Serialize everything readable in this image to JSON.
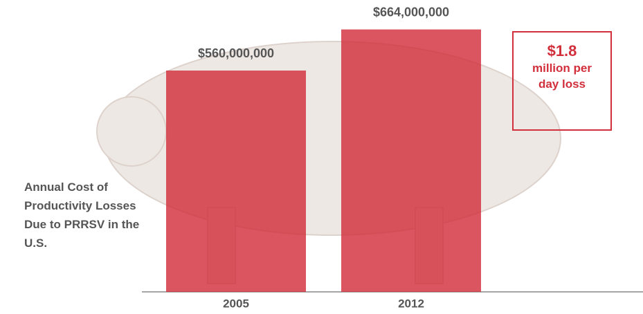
{
  "chart_data": {
    "type": "bar",
    "title": "Annual Cost of Productivity Losses Due to PRRSV in the U.S.",
    "categories": [
      "2005",
      "2012"
    ],
    "values": [
      560000000,
      664000000
    ],
    "value_labels": [
      "$560,000,000",
      "$664,000,000"
    ],
    "color": "#d22f3c",
    "ylim": [
      0,
      700000000
    ],
    "annotations": [
      "$1.8",
      "million per day loss"
    ]
  }
}
